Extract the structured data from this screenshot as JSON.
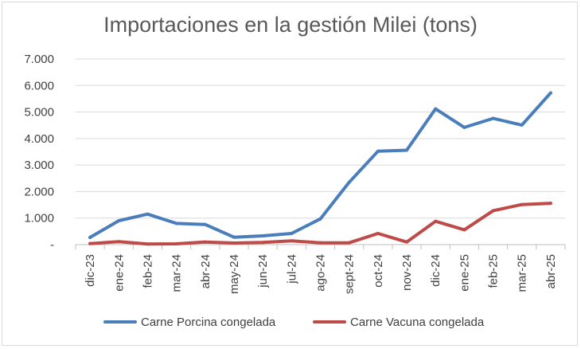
{
  "chart_data": {
    "type": "line",
    "title": "Importaciones en la gestión Milei (tons)",
    "xlabel": "",
    "ylabel": "",
    "categories": [
      "dic-23",
      "ene-24",
      "feb-24",
      "mar-24",
      "abr-24",
      "may-24",
      "jun-24",
      "jul-24",
      "ago-24",
      "sept-24",
      "oct-24",
      "nov-24",
      "dic-24",
      "ene-25",
      "feb-25",
      "mar-25",
      "abr-25"
    ],
    "y_ticks": [
      0,
      1000,
      2000,
      3000,
      4000,
      5000,
      6000,
      7000
    ],
    "y_tick_labels": [
      "-",
      "1.000",
      "2.000",
      "3.000",
      "4.000",
      "5.000",
      "6.000",
      "7.000"
    ],
    "ylim": [
      0,
      7000
    ],
    "grid": true,
    "legend_position": "bottom",
    "series": [
      {
        "name": "Carne Porcina congelada",
        "color": "#4a7ebb",
        "values": [
          270,
          900,
          1150,
          800,
          760,
          280,
          330,
          420,
          970,
          2350,
          3520,
          3560,
          5120,
          4420,
          4760,
          4510,
          5720
        ]
      },
      {
        "name": "Carne Vacuna congelada",
        "color": "#be4b48",
        "values": [
          40,
          110,
          20,
          30,
          100,
          60,
          80,
          140,
          70,
          70,
          420,
          100,
          880,
          560,
          1280,
          1510,
          1560
        ]
      }
    ]
  }
}
